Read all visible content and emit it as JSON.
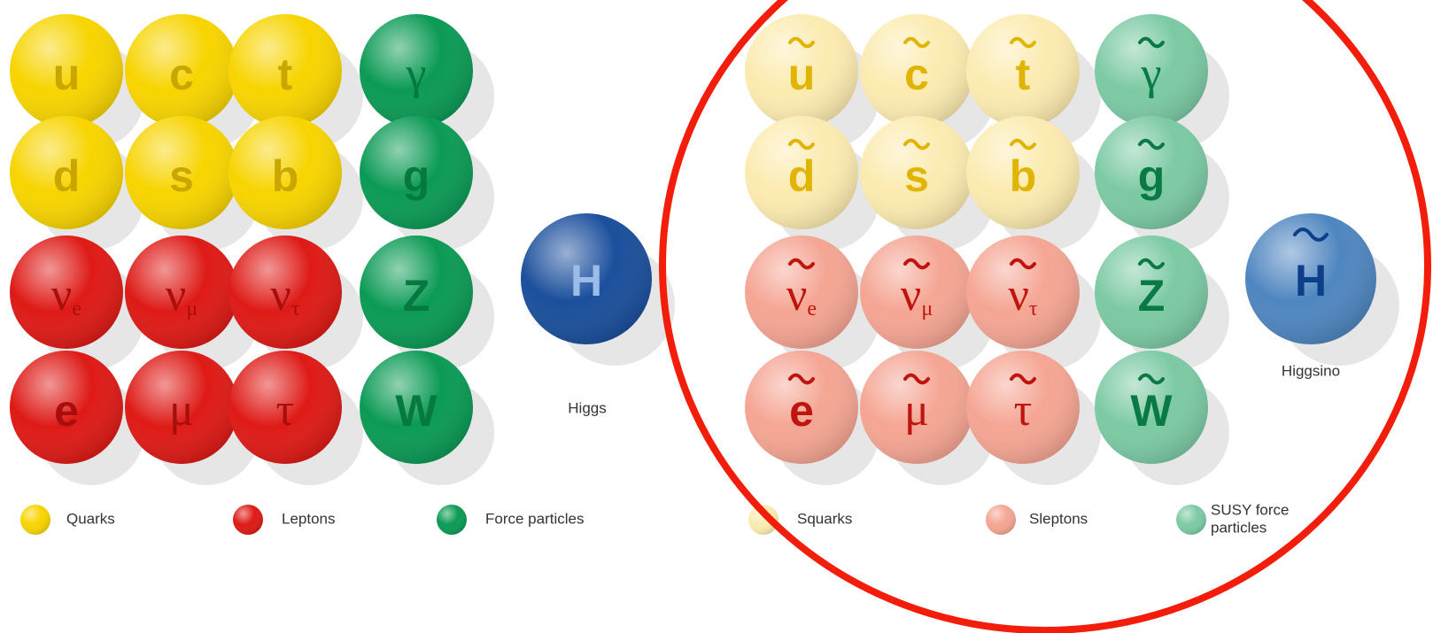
{
  "standard": {
    "particles": [
      {
        "symbol": "u"
      },
      {
        "symbol": "c"
      },
      {
        "symbol": "t"
      },
      {
        "symbol": "γ"
      },
      {
        "symbol": "d"
      },
      {
        "symbol": "s"
      },
      {
        "symbol": "b"
      },
      {
        "symbol": "g"
      },
      {
        "symbol": "ν",
        "sub": "e"
      },
      {
        "symbol": "ν",
        "sub": "μ"
      },
      {
        "symbol": "ν",
        "sub": "τ"
      },
      {
        "symbol": "Z"
      },
      {
        "symbol": "e"
      },
      {
        "symbol": "μ"
      },
      {
        "symbol": "τ"
      },
      {
        "symbol": "W"
      }
    ],
    "higgs": {
      "symbol": "H",
      "label": "Higgs"
    },
    "legend": [
      {
        "lines": [
          "Quarks"
        ]
      },
      {
        "lines": [
          "Leptons"
        ]
      },
      {
        "lines": [
          "Force particles"
        ]
      }
    ]
  },
  "susy": {
    "particles": [
      {
        "symbol": "u"
      },
      {
        "symbol": "c"
      },
      {
        "symbol": "t"
      },
      {
        "symbol": "γ"
      },
      {
        "symbol": "d"
      },
      {
        "symbol": "s"
      },
      {
        "symbol": "b"
      },
      {
        "symbol": "g"
      },
      {
        "symbol": "ν",
        "sub": "e"
      },
      {
        "symbol": "ν",
        "sub": "μ"
      },
      {
        "symbol": "ν",
        "sub": "τ"
      },
      {
        "symbol": "Z"
      },
      {
        "symbol": "e"
      },
      {
        "symbol": "μ"
      },
      {
        "symbol": "τ"
      },
      {
        "symbol": "W"
      }
    ],
    "higgs": {
      "symbol": "H",
      "label": "Higgsino"
    },
    "legend": [
      {
        "lines": [
          "Squarks"
        ]
      },
      {
        "lines": [
          "Sleptons"
        ]
      },
      {
        "lines": [
          "SUSY force",
          "particles"
        ]
      }
    ]
  }
}
